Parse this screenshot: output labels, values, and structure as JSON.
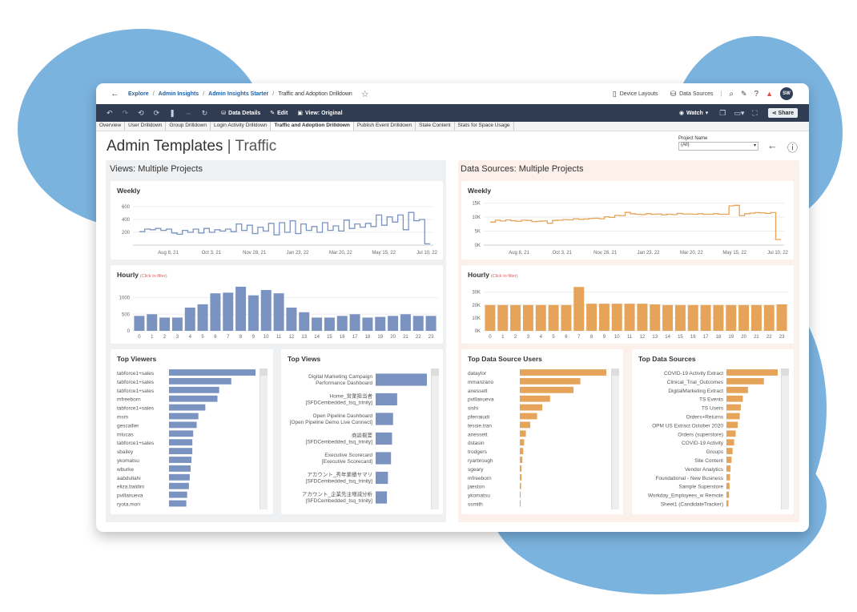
{
  "colors": {
    "blue": "#7a93c0",
    "orange": "#e6a35a",
    "blob": "#7bb3df",
    "toolbar": "#2f3c52"
  },
  "breadcrumb": {
    "explore": "Explore",
    "admin_insights": "Admin Insights",
    "starter": "Admin Insights Starter",
    "current": "Traffic and Adoption Drilldown"
  },
  "topbar": {
    "device_layouts": "Device Layouts",
    "data_sources": "Data Sources",
    "avatar": "SW"
  },
  "toolbar": {
    "data_details": "Data Details",
    "edit": "Edit",
    "view": "View: Original",
    "watch": "Watch",
    "share": "Share"
  },
  "tabs": [
    "Overview",
    "User Drilldown",
    "Group Drilldown",
    "Login Activity Drilldown",
    "Traffic and Adoption Drilldown",
    "Publish Event Drilldown",
    "Stale Content",
    "Stats for Space Usage"
  ],
  "page": {
    "title_main": "Admin Templates",
    "title_sep": "|",
    "title_sub": "Traffic"
  },
  "project_filter": {
    "label": "Project Name",
    "value": "(All)"
  },
  "left_section": {
    "title": "Views: Multiple Projects"
  },
  "right_section": {
    "title": "Data Sources: Multiple Projects"
  },
  "weekly_title": "Weekly",
  "hourly_title": "Hourly",
  "hourly_hint": "(Click to filter)",
  "top_viewers_title": "Top Viewers",
  "top_views_title": "Top Views",
  "top_ds_users_title": "Top Data Source Users",
  "top_ds_title": "Top Data Sources",
  "chart_data": [
    {
      "type": "line",
      "id": "views-weekly",
      "title": "Weekly",
      "color": "#7a93c0",
      "x_ticks": [
        "Aug 8, 21",
        "Oct 3, 21",
        "Nov 28, 21",
        "Jan 23, 22",
        "Mar 20, 22",
        "May 15, 22",
        "Jul 10, 22"
      ],
      "y_ticks": [
        "200",
        "400",
        "600"
      ],
      "ylim": [
        0,
        700
      ],
      "values": [
        210,
        250,
        240,
        260,
        230,
        250,
        190,
        170,
        230,
        200,
        250,
        190,
        260,
        200,
        240,
        220,
        250,
        210,
        330,
        230,
        310,
        180,
        280,
        220,
        340,
        160,
        350,
        200,
        380,
        180,
        330,
        230,
        290,
        200,
        350,
        230,
        300,
        220,
        390,
        260,
        330,
        280,
        340,
        290,
        470,
        310,
        440,
        360,
        470,
        240,
        510,
        380,
        400,
        20
      ]
    },
    {
      "type": "bar",
      "id": "views-hourly",
      "title": "Hourly",
      "color": "#7a93c0",
      "categories": [
        "0",
        "1",
        "2",
        "3",
        "4",
        "5",
        "6",
        "7",
        "8",
        "9",
        "10",
        "11",
        "12",
        "13",
        "14",
        "15",
        "16",
        "17",
        "18",
        "19",
        "20",
        "21",
        "22",
        "23"
      ],
      "y_ticks": [
        "0",
        "500",
        "1000"
      ],
      "ylim": [
        0,
        1400
      ],
      "values": [
        450,
        500,
        400,
        400,
        700,
        800,
        1130,
        1150,
        1330,
        1070,
        1230,
        1130,
        700,
        560,
        400,
        400,
        450,
        500,
        400,
        420,
        450,
        500,
        450,
        450
      ]
    },
    {
      "type": "bar",
      "orientation": "horizontal",
      "id": "top-viewers",
      "title": "Top Viewers",
      "color": "#7a93c0",
      "categories": [
        "tabforce1+sales",
        "tabforce1+sales",
        "tabforce1+sales",
        "mfreeborn",
        "tabforce1+sales",
        "msm",
        "gescallier",
        "mlucas",
        "tabforce1+sales",
        "sbailey",
        "ykomatsu",
        "wburke",
        "aabdullahi",
        "eliza.baldini",
        "pvillanueva",
        "ryota.mori"
      ],
      "values": [
        100,
        72,
        58,
        56,
        42,
        34,
        32,
        28,
        27,
        27,
        26,
        25,
        24,
        23,
        21,
        20
      ]
    },
    {
      "type": "bar",
      "orientation": "horizontal",
      "id": "top-views",
      "title": "Top Views",
      "color": "#7a93c0",
      "categories": [
        [
          "Digital Marketing Campaign",
          "Performance Dashboard"
        ],
        [
          "Home_営業担当者",
          "[SFDCembedded_tsq_trinity]"
        ],
        [
          "Open Pipeline Dashboard",
          "[Open Pipeline Demo Live Connect]"
        ],
        [
          "商談概要",
          "[SFDCembedded_tsq_trinity]"
        ],
        [
          "Executive Scorecard",
          "[Executive Scorecard]"
        ],
        [
          "アカウント_秀年業績サマリ",
          "[SFDCembedded_tsq_trinity]"
        ],
        [
          "アカウント_企業先注増減分析",
          "[SFDCembedded_tsq_trinity]"
        ]
      ],
      "values": [
        100,
        42,
        34,
        32,
        30,
        24,
        22
      ]
    },
    {
      "type": "line",
      "id": "ds-weekly",
      "title": "Weekly",
      "color": "#e6a35a",
      "x_ticks": [
        "Aug 8, 21",
        "Oct 3, 21",
        "Nov 28, 21",
        "Jan 23, 22",
        "Mar 20, 22",
        "May 15, 22",
        "Jul 10, 22"
      ],
      "y_ticks": [
        "0K",
        "5K",
        "10K",
        "15K"
      ],
      "ylim": [
        0,
        16000
      ],
      "values": [
        8200,
        8900,
        8600,
        9000,
        8700,
        8500,
        8900,
        8800,
        8400,
        8500,
        8600,
        7800,
        8800,
        8900,
        9100,
        9000,
        9400,
        9200,
        9300,
        9500,
        9600,
        9400,
        10100,
        9900,
        10600,
        10500,
        11700,
        11200,
        11000,
        10900,
        11200,
        11000,
        11100,
        10800,
        11000,
        10900,
        11300,
        11100,
        11100,
        11000,
        11200,
        11000,
        11000,
        11200,
        11000,
        11000,
        14000,
        14200,
        10500,
        11200,
        11400,
        11600,
        11500,
        11300,
        11600,
        2000
      ]
    },
    {
      "type": "bar",
      "id": "ds-hourly",
      "title": "Hourly",
      "color": "#e6a35a",
      "categories": [
        "0",
        "1",
        "2",
        "3",
        "4",
        "5",
        "6",
        "7",
        "8",
        "9",
        "10",
        "11",
        "12",
        "13",
        "14",
        "15",
        "16",
        "17",
        "18",
        "19",
        "20",
        "21",
        "22",
        "23"
      ],
      "y_ticks": [
        "0K",
        "10K",
        "20K",
        "30K"
      ],
      "ylim": [
        0,
        36000
      ],
      "values": [
        20000,
        20000,
        20000,
        20000,
        20000,
        20000,
        20000,
        34000,
        21000,
        21000,
        21000,
        21000,
        21000,
        20500,
        20000,
        20000,
        20000,
        20000,
        20000,
        20000,
        20000,
        20000,
        20000,
        20500
      ]
    },
    {
      "type": "bar",
      "orientation": "horizontal",
      "id": "top-ds-users",
      "title": "Top Data Source Users",
      "color": "#e6a35a",
      "categories": [
        "dataylor",
        "mmanzano",
        "anessett",
        "pvillanueva",
        "sishi",
        "pferraiudi",
        "tessie.tran",
        "anessett",
        "dstasin",
        "trodgers",
        "ryarbrough",
        "sgeary",
        "mfreeborn",
        "jaeston",
        "ykomatsu",
        "ssmith"
      ],
      "values": [
        100,
        70,
        62,
        35,
        26,
        20,
        12,
        7,
        5,
        4,
        3,
        2,
        2,
        1.5,
        1,
        1
      ]
    },
    {
      "type": "bar",
      "orientation": "horizontal",
      "id": "top-ds",
      "title": "Top Data Sources",
      "color": "#e6a35a",
      "categories": [
        "COVID-19 Activity Extract",
        "Clinical_Trial_Outcomes",
        "DigitalMarketing Extract",
        "TS Events",
        "TS Users",
        "Orders+Returns",
        "OPM US Extract October 2020",
        "Orders (superstore)",
        "COVID-19 Activity",
        "Groups",
        "Site Content",
        "Vendor Analytics",
        "Foundational - New Business",
        "Sample Superstore",
        "Workday_Employees_w Remote",
        "Sheet1 (CandidateTracker)"
      ],
      "values": [
        100,
        73,
        42,
        32,
        28,
        26,
        22,
        18,
        15,
        12,
        10,
        8,
        7,
        6,
        5,
        4
      ]
    }
  ]
}
